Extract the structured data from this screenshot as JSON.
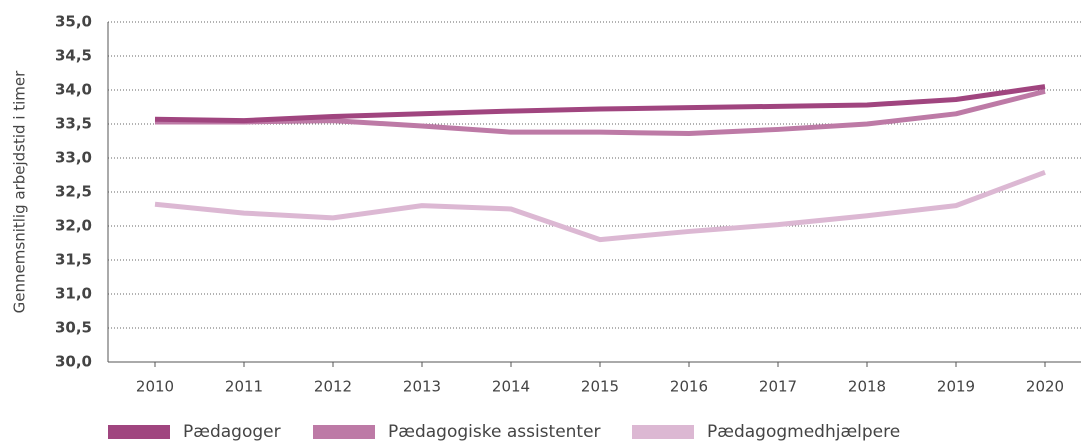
{
  "chart_data": {
    "type": "line",
    "y_label": "Gennemsnitlig arbejdstid i timer",
    "categories": [
      "2010",
      "2011",
      "2012",
      "2013",
      "2014",
      "2015",
      "2016",
      "2017",
      "2018",
      "2019",
      "2020"
    ],
    "series": [
      {
        "name": "Pædagoger",
        "color": "#a0457f",
        "values": [
          33.57,
          33.55,
          33.61,
          33.65,
          33.69,
          33.72,
          33.74,
          33.76,
          33.78,
          33.86,
          34.05
        ]
      },
      {
        "name": "Pædagogiske assistenter",
        "color": "#bd7aa6",
        "values": [
          33.53,
          33.53,
          33.55,
          33.47,
          33.38,
          33.38,
          33.36,
          33.42,
          33.5,
          33.65,
          33.98
        ]
      },
      {
        "name": "Pædagogmedhjælpere",
        "color": "#dcb8d3",
        "values": [
          32.32,
          32.19,
          32.12,
          32.3,
          32.25,
          31.8,
          31.92,
          32.02,
          32.15,
          32.3,
          32.79
        ]
      }
    ],
    "ylim": [
      30,
      35
    ],
    "yticks": [
      {
        "value": 30,
        "label": "30,0"
      },
      {
        "value": 30.5,
        "label": "30,5"
      },
      {
        "value": 31,
        "label": "31,0"
      },
      {
        "value": 31.5,
        "label": "31,5"
      },
      {
        "value": 32,
        "label": "32,0"
      },
      {
        "value": 32.5,
        "label": "32,5"
      },
      {
        "value": 33,
        "label": "33,0"
      },
      {
        "value": 33.5,
        "label": "33,5"
      },
      {
        "value": 34,
        "label": "34,0"
      },
      {
        "value": 34.5,
        "label": "34,5"
      },
      {
        "value": 35,
        "label": "35,0"
      }
    ],
    "grid": true,
    "legend": "bottom"
  }
}
